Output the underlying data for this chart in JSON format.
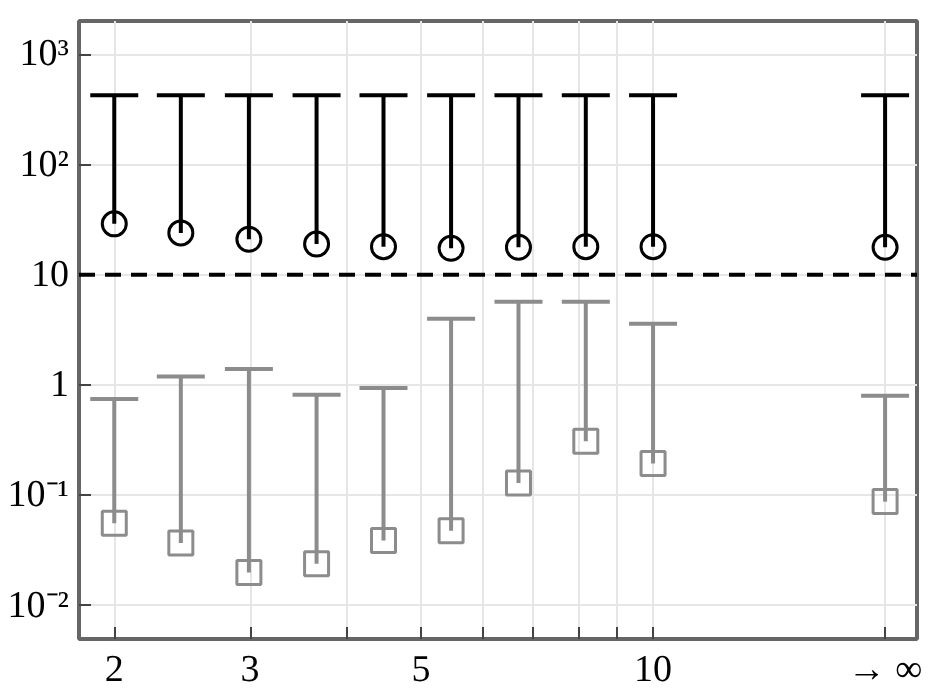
{
  "chart_data": {
    "type": "scatter",
    "log": "xy",
    "grid": true,
    "x": [
      2,
      2.44,
      2.99,
      3.66,
      4.47,
      5.47,
      6.69,
      8.18,
      10,
      20
    ],
    "xlim": [
      1.8,
      22
    ],
    "xticks": [
      2,
      3,
      {
        "value": 4,
        "label": null
      },
      5,
      {
        "value": 6,
        "label": null
      },
      {
        "value": 7,
        "label": null
      },
      {
        "value": 8,
        "label": null
      },
      {
        "value": 9,
        "label": null
      },
      10,
      {
        "value": 20,
        "label": "→ ∞"
      }
    ],
    "ylim": [
      0.005,
      2000
    ],
    "yticks": [
      {
        "value": 0.01,
        "label": "10⁻²"
      },
      {
        "value": 0.1,
        "label": "10⁻¹"
      },
      1,
      10,
      {
        "value": 100,
        "label": "10²"
      },
      {
        "value": 1000,
        "label": "10³"
      }
    ],
    "series": [
      {
        "color": "#000000",
        "marker": "circle",
        "values": [
          29,
          24,
          21,
          19,
          18,
          17.4,
          17.8,
          18,
          18,
          17.8
        ],
        "errors": [
          [
            29,
            424
          ],
          [
            24,
            424
          ],
          [
            21,
            424
          ],
          [
            19,
            424
          ],
          [
            18,
            424
          ],
          [
            17.4,
            424
          ],
          [
            17.8,
            424
          ],
          [
            18,
            424
          ],
          [
            18,
            424
          ],
          [
            17.8,
            424
          ]
        ]
      },
      {
        "color": "#8c8c8c",
        "marker": "square",
        "values": [
          0.056,
          0.037,
          0.02,
          0.024,
          0.039,
          0.048,
          0.13,
          0.31,
          0.195,
          0.088
        ],
        "errors": [
          [
            0.056,
            0.75
          ],
          [
            0.037,
            1.2
          ],
          [
            0.02,
            1.4
          ],
          [
            0.024,
            0.82
          ],
          [
            0.039,
            0.94
          ],
          [
            0.048,
            4
          ],
          [
            0.13,
            5.7
          ],
          [
            0.31,
            5.7
          ],
          [
            0.195,
            3.6
          ],
          [
            0.088,
            0.8
          ]
        ]
      }
    ],
    "ref_lines": [
      {
        "axis": "y",
        "value": 10,
        "color": "#000000",
        "line_style": "dashed"
      }
    ]
  }
}
